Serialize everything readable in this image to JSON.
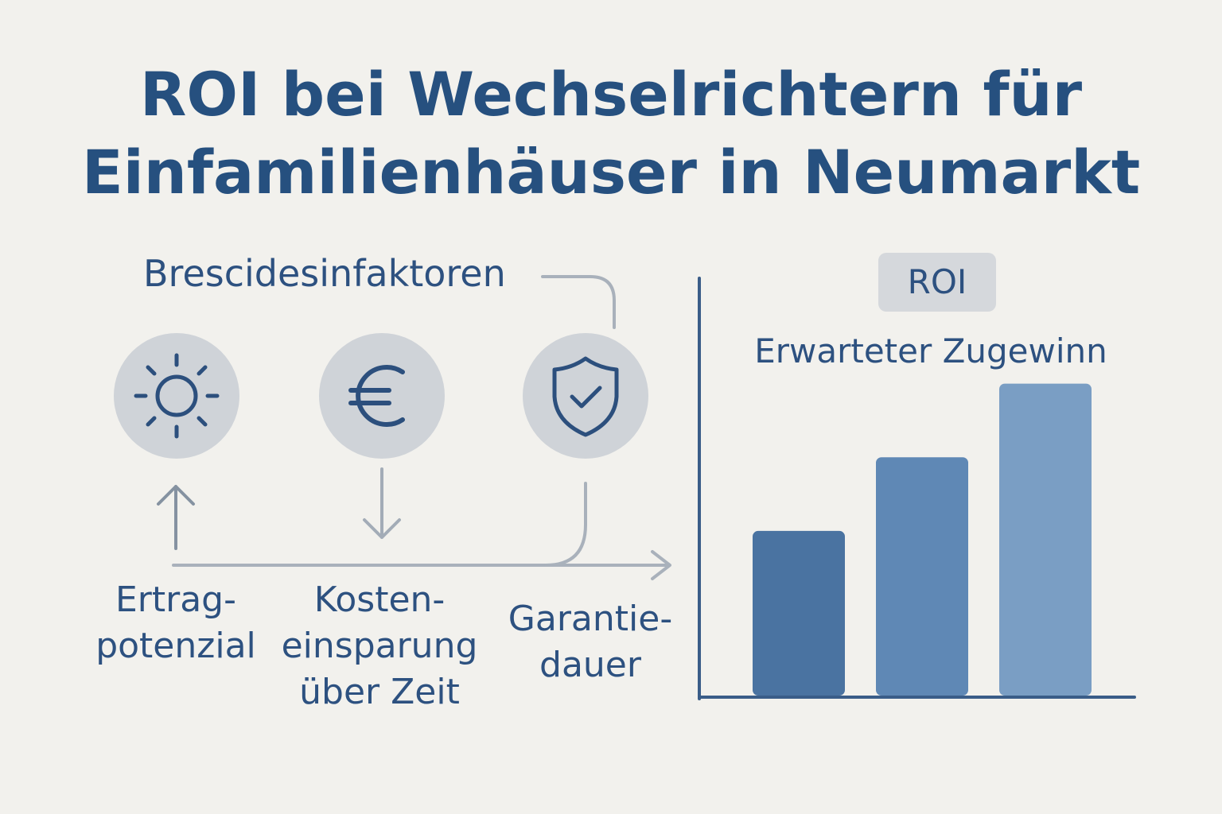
{
  "title": {
    "line1": "ROI bei Wechselrichtern für",
    "line2": "Einfamilienhäuser in Neumarkt"
  },
  "factors": {
    "heading": "Brescidesinfaktoren",
    "items": [
      {
        "icon": "sun-icon",
        "direction": "up",
        "label_lines": [
          "Ertrag-",
          "potenzial"
        ]
      },
      {
        "icon": "euro-icon",
        "direction": "down",
        "label_lines": [
          "Kosten-",
          "einsparung",
          "über Zeit"
        ]
      },
      {
        "icon": "shield-check-icon",
        "direction": "right",
        "label_lines": [
          "Garantie-",
          "dauer"
        ]
      }
    ]
  },
  "roi_panel": {
    "badge": "ROI",
    "subtitle": "Erwarteter Zugewinn"
  },
  "chart_data": {
    "type": "bar",
    "title": "ROI",
    "subtitle": "Erwarteter Zugewinn",
    "categories": [
      "",
      "",
      ""
    ],
    "values": [
      38,
      55,
      72
    ],
    "ylim": [
      0,
      100
    ],
    "grid": false,
    "colors": [
      "#4a73a1",
      "#5f88b5",
      "#7a9ec4"
    ]
  },
  "colors": {
    "background": "#f2f1ed",
    "text": "#274b77",
    "icon_circle": "#cfd3d8",
    "connector": "#a9b1bb",
    "axis": "#3a5d88"
  }
}
